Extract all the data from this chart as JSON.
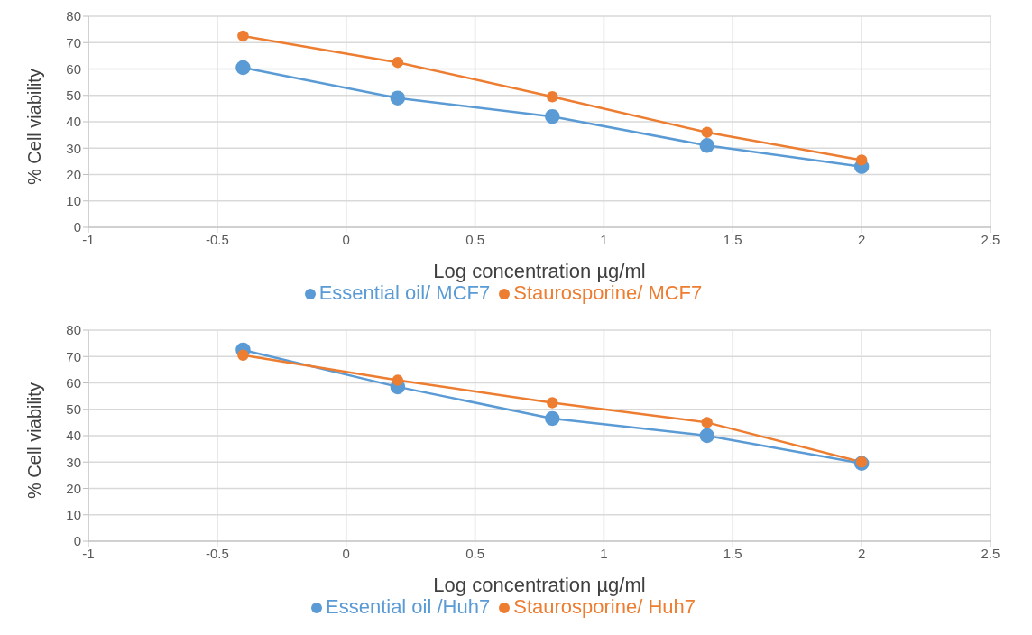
{
  "chart_data": [
    {
      "type": "line",
      "xlabel": "Log concentration µg/ml",
      "ylabel": "% Cell viability",
      "x": [
        -0.4,
        0.2,
        0.8,
        1.4,
        2
      ],
      "series": [
        {
          "name": "Essential oil/ MCF7",
          "color": "#5b9bd5",
          "values": [
            60.5,
            49,
            42,
            31,
            23
          ]
        },
        {
          "name": "Staurosporine/ MCF7",
          "color": "#ed7d31",
          "values": [
            72.5,
            62.5,
            49.5,
            36,
            25.5
          ]
        }
      ],
      "xlim": [
        -1,
        2.5
      ],
      "xticks": [
        -1,
        -0.5,
        0,
        0.5,
        1,
        1.5,
        2,
        2.5
      ],
      "ylim": [
        0,
        80
      ],
      "yticks": [
        0,
        10,
        20,
        30,
        40,
        50,
        60,
        70,
        80
      ],
      "grid": true,
      "legend": "bottom",
      "marker": "circle",
      "line_style": "solid"
    },
    {
      "type": "line",
      "xlabel": "Log concentration µg/ml",
      "ylabel": "% Cell viability",
      "x": [
        -0.4,
        0.2,
        0.8,
        1.4,
        2
      ],
      "series": [
        {
          "name": "Essential oil /Huh7",
          "color": "#5b9bd5",
          "values": [
            72.5,
            58.5,
            46.5,
            40,
            29.5
          ]
        },
        {
          "name": "Staurosporine/ Huh7",
          "color": "#ed7d31",
          "values": [
            70.5,
            61,
            52.5,
            45,
            30
          ]
        }
      ],
      "xlim": [
        -1,
        2.5
      ],
      "xticks": [
        -1,
        -0.5,
        0,
        0.5,
        1,
        1.5,
        2,
        2.5
      ],
      "ylim": [
        0,
        80
      ],
      "yticks": [
        0,
        10,
        20,
        30,
        40,
        50,
        60,
        70,
        80
      ],
      "grid": true,
      "legend": "bottom",
      "marker": "circle",
      "line_style": "solid"
    }
  ]
}
